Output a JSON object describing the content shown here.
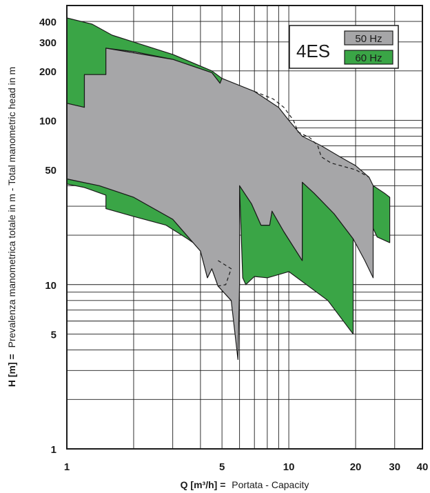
{
  "chart_data": {
    "type": "area",
    "title": "",
    "legend_title": "4ES",
    "xlabel_var": "Q [m³/h] =",
    "xlabel_text": "Portata  -  Capacity",
    "ylabel_var": "H [m] =",
    "ylabel_text": "Prevalenza manometrica totale in m  -  Total manometric head in m",
    "x_scale": "log",
    "y_scale": "log",
    "xlim": [
      1,
      40
    ],
    "ylim": [
      1,
      500
    ],
    "x_ticks": [
      1,
      5,
      10,
      20,
      30,
      40
    ],
    "x_tick_labels": [
      "1",
      "5",
      "10",
      "20",
      "30",
      "40"
    ],
    "y_ticks": [
      1,
      5,
      10,
      50,
      100,
      200,
      300,
      400
    ],
    "y_tick_labels": [
      "1",
      "5",
      "10",
      "50",
      "100",
      "200",
      "300",
      "400"
    ],
    "x_grid": [
      1,
      2,
      3,
      4,
      5,
      6,
      7,
      8,
      9,
      10,
      20,
      30
    ],
    "y_grid": [
      2,
      3,
      4,
      5,
      6,
      7,
      8,
      9,
      10,
      20,
      30,
      40,
      50,
      60,
      70,
      80,
      90,
      100,
      200,
      300,
      400
    ],
    "grid": true,
    "legend_position": "top-right",
    "colors": {
      "hz50": "#a6a6a8",
      "hz60": "#3aa546",
      "outline": "#1a1a1a"
    },
    "series": [
      {
        "name": "60 Hz",
        "color": "#3aa546",
        "areas": [
          [
            [
              1,
              420
            ],
            [
              1.3,
              385
            ],
            [
              1.6,
              330
            ],
            [
              2,
              300
            ],
            [
              3,
              252
            ],
            [
              4.5,
              200
            ],
            [
              5,
              180
            ],
            [
              4.9,
              168
            ],
            [
              4.5,
              195
            ],
            [
              3,
              235
            ],
            [
              2,
              262
            ],
            [
              1.5,
              275
            ],
            [
              1.5,
              190
            ],
            [
              1.2,
              190
            ],
            [
              1.2,
              120
            ],
            [
              1,
              127
            ]
          ],
          [
            [
              1,
              44
            ],
            [
              1.4,
              40
            ],
            [
              2,
              34
            ],
            [
              3,
              25
            ],
            [
              4,
              16
            ],
            [
              4.3,
              11
            ],
            [
              4.5,
              12.5
            ],
            [
              4.8,
              9.8
            ],
            [
              5.5,
              8
            ],
            [
              5.3,
              10
            ],
            [
              5,
              12
            ],
            [
              4.5,
              15
            ],
            [
              3.5,
              19
            ],
            [
              2.8,
              23
            ],
            [
              2,
              26
            ],
            [
              1.5,
              29
            ],
            [
              1.5,
              35
            ],
            [
              1.2,
              39
            ],
            [
              1,
              41
            ]
          ],
          [
            [
              6,
              40
            ],
            [
              6.8,
              31
            ],
            [
              7.5,
              23
            ],
            [
              8.2,
              23
            ],
            [
              8.4,
              28
            ],
            [
              9.5,
              21
            ],
            [
              11.5,
              14
            ],
            [
              11.5,
              42
            ],
            [
              13,
              36
            ],
            [
              16,
              27
            ],
            [
              19.5,
              19
            ],
            [
              19.5,
              5
            ],
            [
              15,
              8
            ],
            [
              10,
              12
            ],
            [
              8,
              11
            ],
            [
              7,
              11.2
            ],
            [
              6.4,
              10
            ],
            [
              6.2,
              11
            ]
          ],
          [
            [
              24,
              40
            ],
            [
              27,
              36
            ],
            [
              28.5,
              34
            ],
            [
              28.5,
              18
            ],
            [
              25,
              19.5
            ],
            [
              24,
              22
            ]
          ]
        ]
      },
      {
        "name": "50 Hz",
        "color": "#a6a6a8",
        "areas": [
          [
            [
              1.5,
              275
            ],
            [
              3,
              235
            ],
            [
              4.5,
              195
            ],
            [
              4.9,
              168
            ],
            [
              5,
              180
            ],
            [
              7,
              150
            ],
            [
              9,
              120
            ],
            [
              10,
              100
            ],
            [
              11.5,
              80
            ],
            [
              14,
              70
            ],
            [
              17,
              60
            ],
            [
              20,
              53
            ],
            [
              23,
              45
            ],
            [
              24,
              40
            ],
            [
              24,
              22
            ],
            [
              24,
              11
            ],
            [
              22,
              14
            ],
            [
              19.5,
              19
            ],
            [
              16,
              27
            ],
            [
              13,
              36
            ],
            [
              11.5,
              42
            ],
            [
              11.5,
              14
            ],
            [
              9.5,
              21
            ],
            [
              8.4,
              28
            ],
            [
              8.2,
              23
            ],
            [
              7.5,
              23
            ],
            [
              6.8,
              31
            ],
            [
              6,
              40
            ],
            [
              6,
              10
            ],
            [
              5.9,
              3.5
            ],
            [
              5.5,
              8
            ],
            [
              4.8,
              9.8
            ],
            [
              4.5,
              12.5
            ],
            [
              4.3,
              11
            ],
            [
              4,
              16
            ],
            [
              3,
              25
            ],
            [
              2,
              34
            ],
            [
              1.4,
              40
            ],
            [
              1,
              44
            ],
            [
              1,
              127
            ],
            [
              1.2,
              120
            ],
            [
              1.2,
              190
            ],
            [
              1.5,
              190
            ]
          ]
        ]
      }
    ],
    "dashed": [
      [
        [
          7,
          150
        ],
        [
          8.5,
          135
        ],
        [
          9.5,
          120
        ],
        [
          10.5,
          100
        ],
        [
          11,
          85
        ],
        [
          12.5,
          78
        ],
        [
          13.5,
          70
        ],
        [
          14,
          60
        ],
        [
          15.5,
          55
        ],
        [
          20,
          50
        ],
        [
          23,
          45
        ]
      ],
      [
        [
          4.8,
          14
        ],
        [
          5.5,
          12.5
        ],
        [
          5.2,
          10
        ],
        [
          4.8,
          9.8
        ]
      ]
    ],
    "legend": [
      {
        "label": "50 Hz",
        "color": "#a6a6a8"
      },
      {
        "label": "60 Hz",
        "color": "#3aa546"
      }
    ]
  }
}
